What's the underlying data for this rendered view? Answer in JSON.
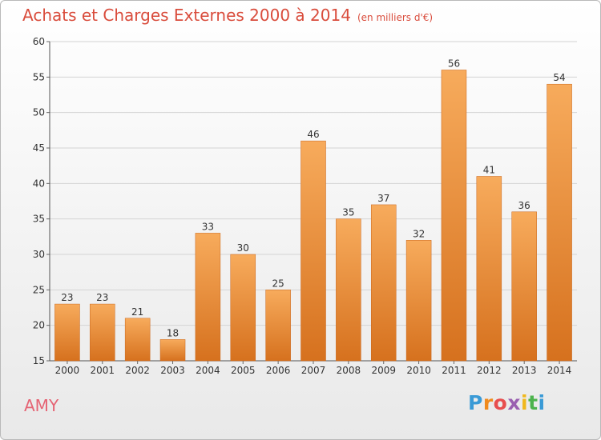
{
  "header": {
    "title": "Achats et Charges Externes 2000 à 2014",
    "subtitle": "(en milliers d'€)"
  },
  "footer": {
    "town": "AMY",
    "brand": "Proxiti"
  },
  "colors": {
    "title": "#d94c3c",
    "bar_light": "#f6a95a",
    "bar_dark": "#d8721f",
    "town": "#e56474"
  },
  "chart_data": {
    "type": "bar",
    "title": "Achats et Charges Externes 2000 à 2014",
    "subtitle": "(en milliers d'€)",
    "xlabel": "",
    "ylabel": "",
    "categories": [
      "2000",
      "2001",
      "2002",
      "2003",
      "2004",
      "2005",
      "2006",
      "2007",
      "2008",
      "2009",
      "2010",
      "2011",
      "2012",
      "2013",
      "2014"
    ],
    "values": [
      23,
      23,
      21,
      18,
      33,
      30,
      25,
      46,
      35,
      37,
      32,
      56,
      41,
      36,
      54
    ],
    "ylim": [
      15,
      60
    ],
    "yticks": [
      15,
      20,
      25,
      30,
      35,
      40,
      45,
      50,
      55,
      60
    ],
    "grid": true,
    "data_labels": true
  }
}
